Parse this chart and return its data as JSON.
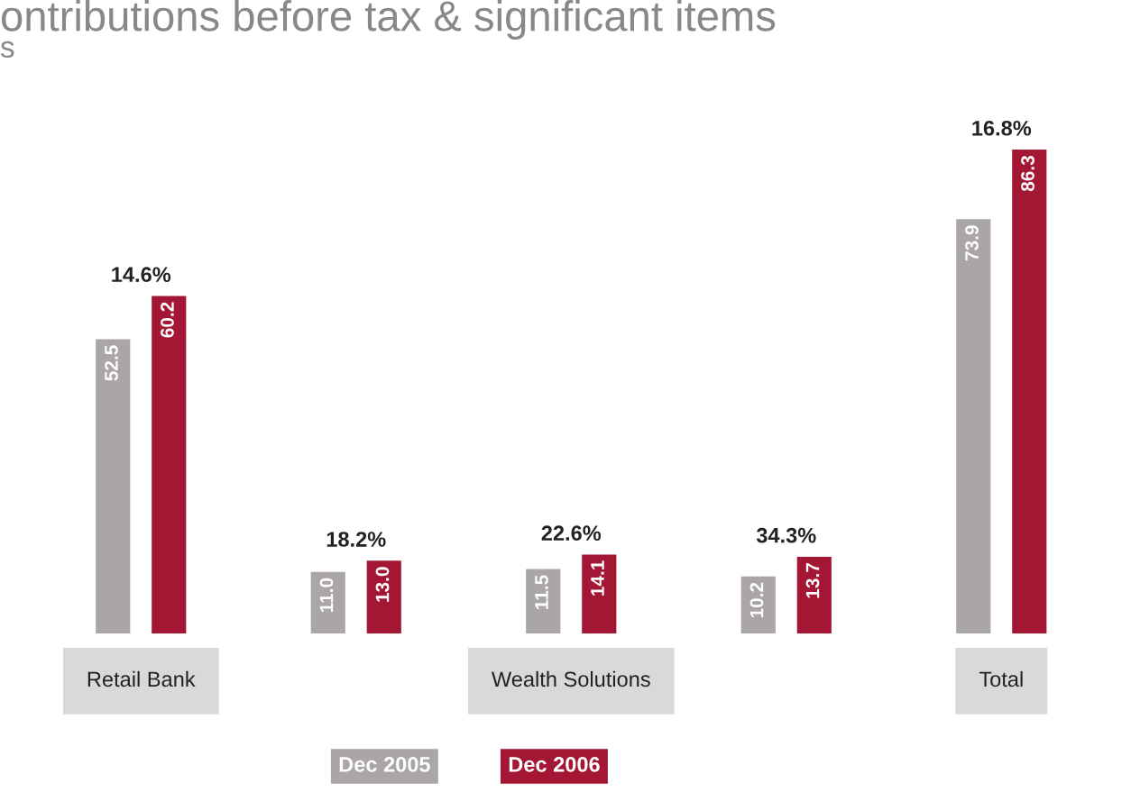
{
  "chart_data": {
    "type": "bar",
    "title": "ontributions before tax & significant items",
    "subtitle": "s",
    "categories": [
      "Retail Bank",
      null,
      "Wealth Solutions",
      null,
      "Total"
    ],
    "series": [
      {
        "name": "Dec 2005",
        "color": "#a9a6a5",
        "values": [
          52.5,
          11.0,
          11.5,
          10.2,
          73.9
        ],
        "value_labels": [
          "52.5",
          "11.0",
          "11.5",
          "10.2",
          "73.9"
        ]
      },
      {
        "name": "Dec 2006",
        "color": "#a31735",
        "values": [
          60.2,
          13.0,
          14.1,
          13.7,
          86.3
        ],
        "value_labels": [
          "60.2",
          "13.0",
          "14.1",
          "13.7",
          "86.3"
        ]
      }
    ],
    "annotations": [
      "14.6%",
      "18.2%",
      "22.6%",
      "34.3%",
      "16.8%"
    ],
    "legend": "bottom",
    "grid": false
  }
}
